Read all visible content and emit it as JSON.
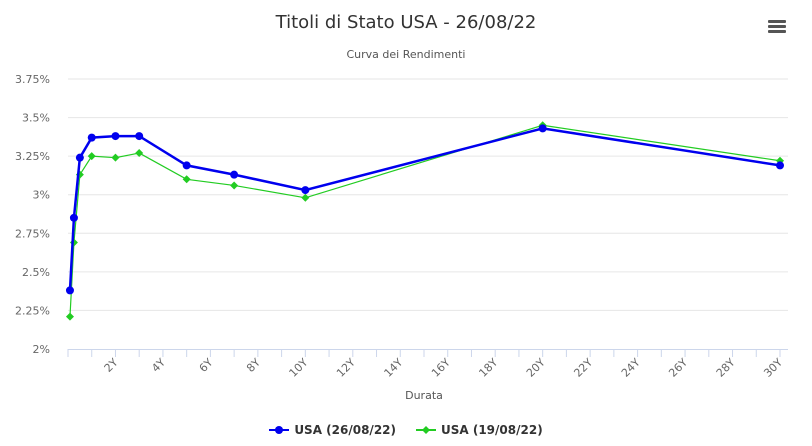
{
  "chart_data": {
    "type": "line",
    "title": "Titoli di Stato USA - 26/08/22",
    "subtitle": "Curva dei Rendimenti",
    "xlabel": "Durata",
    "ylabel": "",
    "xlim": [
      0,
      30
    ],
    "ylim": [
      2,
      3.75
    ],
    "yticks": [
      "2%",
      "2.25%",
      "2.5%",
      "2.75%",
      "3%",
      "3.25%",
      "3.5%",
      "3.75%"
    ],
    "xticks": [
      "2Y",
      "4Y",
      "6Y",
      "8Y",
      "10Y",
      "12Y",
      "14Y",
      "16Y",
      "18Y",
      "20Y",
      "22Y",
      "24Y",
      "26Y",
      "28Y",
      "30Y"
    ],
    "grid": true,
    "legend": "bottom-center",
    "x": [
      0.083,
      0.25,
      0.5,
      1,
      2,
      3,
      5,
      7,
      10,
      20,
      30
    ],
    "series": [
      {
        "name": "USA (26/08/22)",
        "color": "#0000ee",
        "marker": "circle",
        "values": [
          2.38,
          2.85,
          3.24,
          3.37,
          3.38,
          3.38,
          3.19,
          3.13,
          3.03,
          3.43,
          3.19
        ]
      },
      {
        "name": "USA (19/08/22)",
        "color": "#22cc22",
        "marker": "diamond",
        "values": [
          2.21,
          2.69,
          3.13,
          3.25,
          3.24,
          3.27,
          3.1,
          3.06,
          2.98,
          3.45,
          3.22
        ]
      }
    ]
  }
}
